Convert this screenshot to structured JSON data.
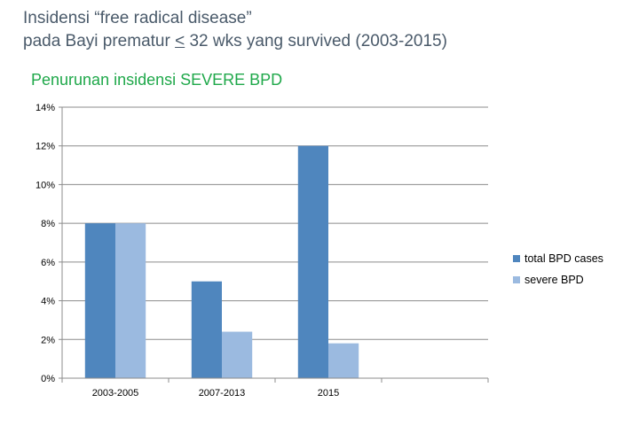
{
  "page": {
    "title_line1": "Insidensi “free radical disease”",
    "title_line2_pre": "pada Bayi prematur ",
    "title_line2_lte": "<",
    "title_line2_post": " 32 wks yang survived  (2003-2015)",
    "subtitle": "Penurunan insidensi SEVERE BPD"
  },
  "colors": {
    "series1": "#4f86be",
    "series2": "#9bbae0",
    "grid": "#8c8c8c",
    "subtitle": "#1fa84a",
    "title": "#4a5a6a"
  },
  "chart_data": {
    "type": "bar",
    "title": "",
    "xlabel": "",
    "ylabel": "",
    "categories": [
      "2003-2005",
      "2007-2013",
      "2015",
      ""
    ],
    "series": [
      {
        "name": "total BPD cases",
        "values": [
          8,
          5,
          12,
          null
        ]
      },
      {
        "name": "severe BPD",
        "values": [
          8,
          2.4,
          1.8,
          null
        ]
      }
    ],
    "ylim": [
      0,
      14
    ],
    "yticks": [
      0,
      2,
      4,
      6,
      8,
      10,
      12,
      14
    ],
    "ytick_suffix": "%",
    "grid": true,
    "legend_position": "right"
  }
}
